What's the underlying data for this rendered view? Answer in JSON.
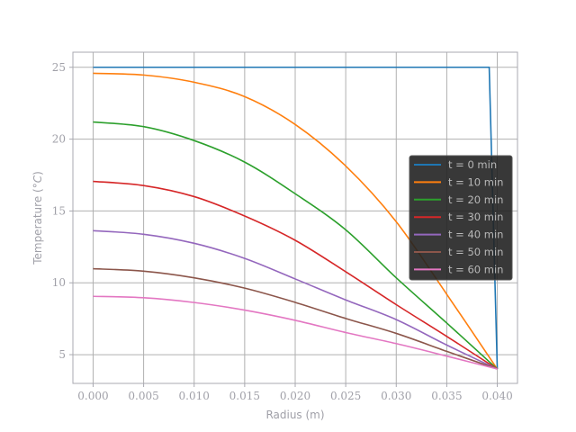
{
  "chart_data": {
    "type": "line",
    "title": "",
    "xlabel": "Radius (m)",
    "ylabel": "Temperature (°C)",
    "ylabel_parts": {
      "prefix": "Temperature (",
      "unit": "°C",
      "suffix": ")"
    },
    "xlim": [
      -0.002,
      0.042
    ],
    "ylim": [
      3.0,
      26.05
    ],
    "xticks": [
      0.0,
      0.005,
      0.01,
      0.015,
      0.02,
      0.025,
      0.03,
      0.035,
      0.04
    ],
    "xtick_labels": [
      "0.000",
      "0.005",
      "0.010",
      "0.015",
      "0.020",
      "0.025",
      "0.030",
      "0.035",
      "0.040"
    ],
    "yticks": [
      5,
      10,
      15,
      20,
      25
    ],
    "ytick_labels": [
      "5",
      "10",
      "15",
      "20",
      "25"
    ],
    "grid": true,
    "legend_position": "center-right",
    "series": [
      {
        "name": "t = 0 min",
        "color": "#1f77b4",
        "x": [
          0.0,
          0.0392,
          0.04
        ],
        "y": [
          25.0,
          25.0,
          4.0
        ],
        "smooth": false
      },
      {
        "name": "t = 10 min",
        "color": "#ff7f0e",
        "x": [
          0.0,
          0.005,
          0.01,
          0.015,
          0.02,
          0.025,
          0.03,
          0.035,
          0.04
        ],
        "y": [
          24.58,
          24.46,
          23.96,
          22.96,
          21.02,
          18.13,
          14.25,
          9.2,
          4.0
        ],
        "smooth": true
      },
      {
        "name": "t = 20 min",
        "color": "#2ca02c",
        "x": [
          0.0,
          0.005,
          0.01,
          0.015,
          0.02,
          0.025,
          0.03,
          0.035,
          0.04
        ],
        "y": [
          21.19,
          20.87,
          19.9,
          18.4,
          16.2,
          13.69,
          10.35,
          7.2,
          4.0
        ],
        "smooth": true
      },
      {
        "name": "t = 30 min",
        "color": "#d62728",
        "x": [
          0.0,
          0.005,
          0.01,
          0.015,
          0.02,
          0.025,
          0.03,
          0.035,
          0.04
        ],
        "y": [
          17.06,
          16.77,
          16.0,
          14.65,
          12.96,
          10.77,
          8.48,
          6.27,
          4.0
        ],
        "smooth": true
      },
      {
        "name": "t = 40 min",
        "color": "#9467bd",
        "x": [
          0.0,
          0.005,
          0.01,
          0.015,
          0.02,
          0.025,
          0.03,
          0.035,
          0.04
        ],
        "y": [
          13.63,
          13.38,
          12.75,
          11.7,
          10.27,
          8.81,
          7.44,
          5.67,
          4.0
        ],
        "smooth": true
      },
      {
        "name": "t = 50 min",
        "color": "#8c564b",
        "x": [
          0.0,
          0.005,
          0.01,
          0.015,
          0.02,
          0.025,
          0.03,
          0.035,
          0.04
        ],
        "y": [
          10.98,
          10.81,
          10.35,
          9.63,
          8.64,
          7.52,
          6.48,
          5.23,
          4.0
        ],
        "smooth": true
      },
      {
        "name": "t = 60 min",
        "color": "#e377c2",
        "x": [
          0.0,
          0.005,
          0.01,
          0.015,
          0.02,
          0.025,
          0.03,
          0.035,
          0.04
        ],
        "y": [
          9.06,
          8.96,
          8.63,
          8.1,
          7.39,
          6.54,
          5.77,
          4.9,
          4.0
        ],
        "smooth": true
      }
    ]
  }
}
